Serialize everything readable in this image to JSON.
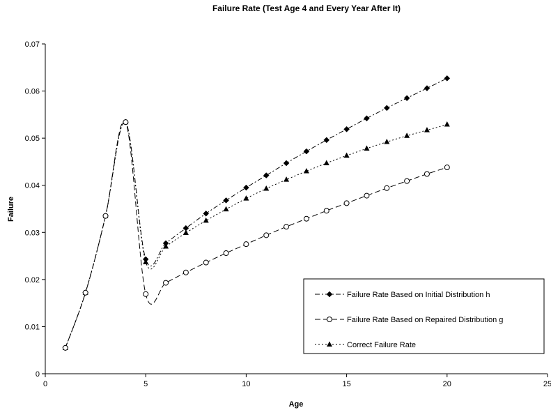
{
  "chart_data": {
    "type": "line",
    "title": "Failure Rate (Test Age 4 and Every Year After It)",
    "xlabel": "Age",
    "ylabel": "Failure",
    "xlim": [
      0,
      25
    ],
    "ylim": [
      0,
      0.07
    ],
    "x_ticks": [
      0,
      5,
      10,
      15,
      20,
      25
    ],
    "y_ticks": [
      0,
      0.01,
      0.02,
      0.03,
      0.04,
      0.05,
      0.06,
      0.07
    ],
    "x_tick_labels": [
      "0",
      "5",
      "10",
      "15",
      "20",
      "25"
    ],
    "y_tick_labels": [
      "0",
      "0.01",
      "0.02",
      "0.03",
      "0.04",
      "0.05",
      "0.06",
      "0.07"
    ],
    "grid": false,
    "legend_position": "bottom-right",
    "x": [
      1,
      2,
      3,
      4,
      5,
      6,
      7,
      8,
      9,
      10,
      11,
      12,
      13,
      14,
      15,
      16,
      17,
      18,
      19,
      20
    ],
    "series": [
      {
        "name": "Failure Rate Based on Initial Distribution h",
        "marker": "diamond",
        "line_style": "dash-dot",
        "values": [
          0.0055,
          0.0172,
          0.0335,
          0.0534,
          0.0243,
          0.0277,
          0.0309,
          0.034,
          0.0368,
          0.0395,
          0.0421,
          0.0447,
          0.0472,
          0.0496,
          0.0519,
          0.0542,
          0.0564,
          0.0585,
          0.0606,
          0.0627
        ]
      },
      {
        "name": "Failure Rate Based on Repaired Distribution g",
        "marker": "open-circle",
        "line_style": "long-dash",
        "values": [
          0.0055,
          0.0172,
          0.0335,
          0.0534,
          0.0169,
          0.0193,
          0.0215,
          0.0236,
          0.0256,
          0.0275,
          0.0294,
          0.0312,
          0.0329,
          0.0346,
          0.0362,
          0.0378,
          0.0394,
          0.0409,
          0.0424,
          0.0438
        ]
      },
      {
        "name": "Correct Failure Rate",
        "marker": "triangle",
        "line_style": "dotted",
        "values": [
          0.0055,
          0.0172,
          0.0335,
          0.0534,
          0.0237,
          0.027,
          0.0299,
          0.0325,
          0.0349,
          0.0372,
          0.0393,
          0.0412,
          0.043,
          0.0447,
          0.0463,
          0.0478,
          0.0492,
          0.0505,
          0.0517,
          0.0529
        ]
      }
    ]
  }
}
